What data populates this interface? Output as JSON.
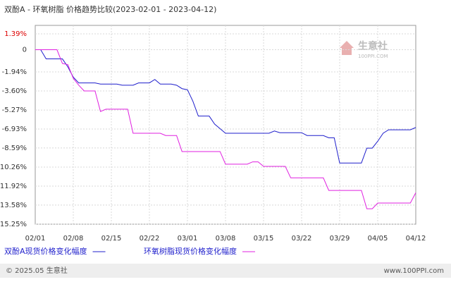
{
  "chart_data": {
    "type": "line",
    "title": "双酚A - 环氧树脂 价格趋势比较(2023-02-01 - 2023-04-12)",
    "categories": [
      "02/01",
      null,
      null,
      null,
      null,
      null,
      null,
      "02/08",
      null,
      null,
      null,
      null,
      null,
      null,
      "02/15",
      null,
      null,
      null,
      null,
      null,
      null,
      "02/22",
      null,
      null,
      null,
      null,
      null,
      null,
      "03/01",
      null,
      null,
      null,
      null,
      null,
      null,
      "03/08",
      null,
      null,
      null,
      null,
      null,
      null,
      "03/15",
      null,
      null,
      null,
      null,
      null,
      null,
      "03/22",
      null,
      null,
      null,
      null,
      null,
      null,
      "03/29",
      null,
      null,
      null,
      null,
      null,
      null,
      "04/05",
      null,
      null,
      null,
      null,
      null,
      null,
      "04/12"
    ],
    "series": [
      {
        "name": "双酚A现货价格变化幅度",
        "color": "#1f1fcc",
        "values": [
          0,
          0,
          -0.8,
          -0.8,
          -0.8,
          -0.8,
          -1.5,
          -2.4,
          -2.9,
          -2.9,
          -2.9,
          -2.9,
          -3.0,
          -3.0,
          -3.0,
          -3.0,
          -3.1,
          -3.1,
          -3.1,
          -2.9,
          -2.9,
          -2.9,
          -2.6,
          -3.0,
          -3.0,
          -3.0,
          -3.1,
          -3.4,
          -3.5,
          -4.5,
          -5.8,
          -5.8,
          -5.8,
          -6.5,
          -6.9,
          -7.3,
          -7.3,
          -7.3,
          -7.3,
          -7.3,
          -7.3,
          -7.3,
          -7.3,
          -7.3,
          -7.1,
          -7.25,
          -7.25,
          -7.25,
          -7.25,
          -7.25,
          -7.5,
          -7.5,
          -7.5,
          -7.5,
          -7.7,
          -7.7,
          -9.9,
          -9.9,
          -9.9,
          -9.9,
          -9.9,
          -8.6,
          -8.6,
          -8.0,
          -7.3,
          -7.0,
          -7.0,
          -7.0,
          -7.0,
          -7.0,
          -6.8
        ]
      },
      {
        "name": "环氧树脂现货价格变化幅度",
        "color": "#e020e0",
        "values": [
          0,
          0,
          0,
          0,
          0,
          -1.2,
          -1.3,
          -2.5,
          -3.1,
          -3.6,
          -3.6,
          -3.6,
          -5.4,
          -5.2,
          -5.2,
          -5.2,
          -5.2,
          -5.2,
          -7.3,
          -7.3,
          -7.3,
          -7.3,
          -7.3,
          -7.3,
          -7.5,
          -7.5,
          -7.5,
          -8.9,
          -8.9,
          -8.9,
          -8.9,
          -8.9,
          -8.9,
          -8.9,
          -8.9,
          -10.0,
          -10.0,
          -10.0,
          -10.0,
          -10.0,
          -9.8,
          -9.8,
          -10.2,
          -10.2,
          -10.2,
          -10.2,
          -10.2,
          -11.2,
          -11.2,
          -11.2,
          -11.2,
          -11.2,
          -11.2,
          -11.2,
          -12.3,
          -12.3,
          -12.3,
          -12.3,
          -12.3,
          -12.3,
          -12.3,
          -13.9,
          -13.9,
          -13.4,
          -13.4,
          -13.4,
          -13.4,
          -13.4,
          -13.4,
          -13.4,
          -12.5
        ]
      }
    ],
    "ylim": [
      -15.25,
      1.39
    ],
    "yticks": [
      {
        "value": 1.39,
        "label": "1.39%"
      },
      0,
      {
        "value": -1.94,
        "label": "-1.94%"
      },
      {
        "value": -3.6,
        "label": "-3.60%"
      },
      {
        "value": -5.27,
        "label": "-5.27%"
      },
      {
        "value": -6.93,
        "label": "-6.93%"
      },
      {
        "value": -8.59,
        "label": "-8.59%"
      },
      {
        "value": -10.26,
        "label": "-10.26%"
      },
      {
        "value": -11.92,
        "label": "-11.92%"
      },
      {
        "value": -13.58,
        "label": "-13.58%"
      },
      {
        "value": -15.25,
        "label": "-15.25%"
      }
    ],
    "grid": true
  },
  "watermark": {
    "name": "生意社",
    "url": "100PPI.COM"
  },
  "footer": {
    "left": "© 2025.05 生意社",
    "right": "www.100PPI.com"
  }
}
